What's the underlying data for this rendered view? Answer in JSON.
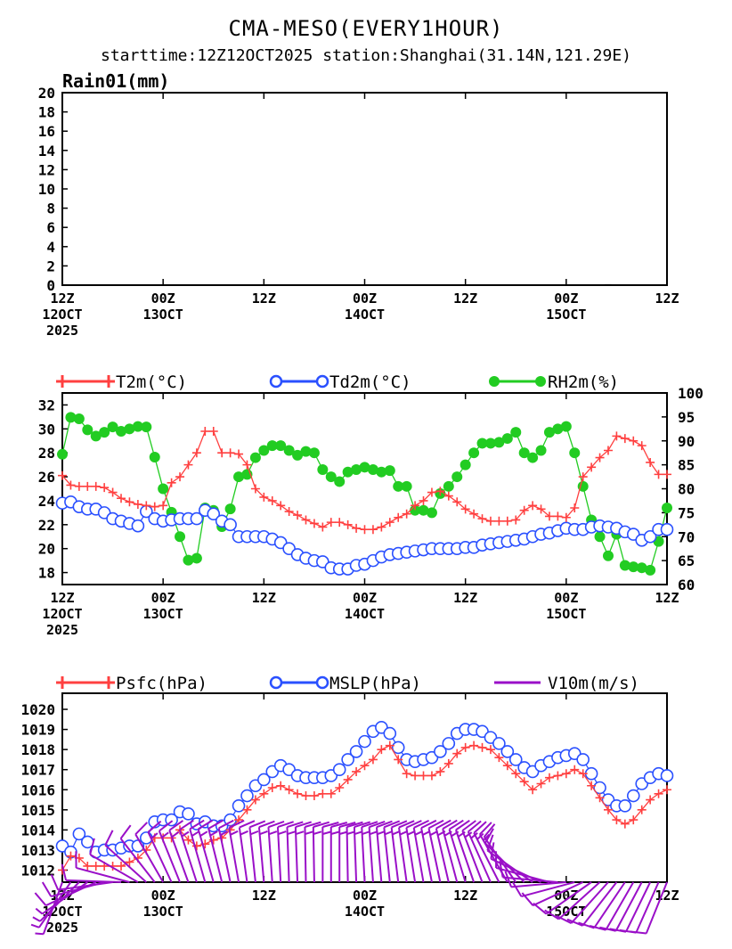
{
  "title": "CMA-MESO(EVERY1HOUR)",
  "subtitle": "starttime:12Z12OCT2025   station:Shanghai(31.14N,121.29E)",
  "time_axis": {
    "ticks": [
      {
        "hour": 0,
        "line1": "12Z",
        "line2": "12OCT",
        "line3": "2025"
      },
      {
        "hour": 12,
        "line1": "00Z",
        "line2": "13OCT",
        "line3": ""
      },
      {
        "hour": 24,
        "line1": "12Z",
        "line2": "",
        "line3": ""
      },
      {
        "hour": 36,
        "line1": "00Z",
        "line2": "14OCT",
        "line3": ""
      },
      {
        "hour": 48,
        "line1": "12Z",
        "line2": "",
        "line3": ""
      },
      {
        "hour": 60,
        "line1": "00Z",
        "line2": "15OCT",
        "line3": ""
      },
      {
        "hour": 72,
        "line1": "12Z",
        "line2": "",
        "line3": ""
      }
    ]
  },
  "colors": {
    "temperature": "#ff4040",
    "dewpoint": "#2a50ff",
    "humidity": "#22cc22",
    "pressure_sfc": "#ff4040",
    "mslp": "#2a50ff",
    "wind": "#9a10c8"
  },
  "chart_data": [
    {
      "type": "bar",
      "ylabel": "Rain01(mm)",
      "ylim": [
        0,
        20
      ],
      "yticks": [
        0,
        2,
        4,
        6,
        8,
        10,
        12,
        14,
        16,
        18,
        20
      ],
      "x": "hours from 12Z12OCT2025 (0-72)",
      "series": [
        {
          "name": "Rain01(mm)",
          "values": [
            0,
            0,
            0,
            0,
            0,
            0,
            0,
            0,
            0,
            0,
            0,
            0,
            0,
            0,
            0,
            0,
            0,
            0,
            0,
            0,
            0,
            0,
            0,
            0,
            0,
            0,
            0,
            0,
            0,
            0,
            0,
            0,
            0,
            0,
            0,
            0,
            0,
            0,
            0,
            0,
            0,
            0,
            0,
            0,
            0,
            0,
            0,
            0,
            0,
            0,
            0,
            0,
            0,
            0,
            0,
            0,
            0,
            0,
            0,
            0,
            0,
            0,
            0,
            0,
            0,
            0.1,
            0,
            0,
            0,
            0,
            0,
            0,
            0
          ]
        }
      ],
      "grid": false
    },
    {
      "type": "line",
      "x": "hours from 12Z12OCT2025 (0-72)",
      "ylim_left": [
        17,
        33
      ],
      "yticks_left": [
        18,
        20,
        22,
        24,
        26,
        28,
        30,
        32
      ],
      "ylim_right": [
        60,
        100
      ],
      "yticks_right": [
        60,
        65,
        70,
        75,
        80,
        85,
        90,
        95,
        100
      ],
      "series": [
        {
          "name": "T2m(°C)",
          "axis": "left",
          "marker": "plus",
          "values": [
            26.1,
            25.3,
            25.2,
            25.2,
            25.2,
            25.1,
            24.7,
            24.2,
            23.9,
            23.7,
            23.6,
            23.5,
            23.6,
            25.5,
            26.0,
            27.0,
            28.0,
            29.8,
            29.8,
            28.0,
            28.0,
            27.9,
            27.0,
            25.0,
            24.3,
            24.0,
            23.6,
            23.1,
            22.8,
            22.4,
            22.1,
            21.8,
            22.2,
            22.2,
            22.0,
            21.7,
            21.6,
            21.6,
            21.8,
            22.2,
            22.6,
            22.9,
            23.6,
            24.0,
            24.7,
            24.8,
            24.4,
            23.9,
            23.3,
            22.9,
            22.5,
            22.3,
            22.3,
            22.3,
            22.4,
            23.2,
            23.6,
            23.3,
            22.7,
            22.7,
            22.6,
            23.4,
            26.0,
            26.8,
            27.6,
            28.2,
            29.4,
            29.2,
            29.0,
            28.6,
            27.2,
            26.2,
            26.2
          ]
        },
        {
          "name": "Td2m(°C)",
          "axis": "left",
          "marker": "circle",
          "values": [
            23.8,
            23.9,
            23.5,
            23.3,
            23.3,
            23.0,
            22.5,
            22.3,
            22.1,
            21.9,
            23.1,
            22.5,
            22.3,
            22.4,
            22.5,
            22.5,
            22.5,
            23.2,
            22.9,
            22.3,
            22.0,
            21.0,
            21.0,
            21.0,
            21.0,
            20.8,
            20.5,
            20.0,
            19.5,
            19.2,
            19.0,
            18.9,
            18.4,
            18.3,
            18.3,
            18.6,
            18.7,
            19.0,
            19.3,
            19.5,
            19.6,
            19.7,
            19.8,
            19.9,
            20.0,
            20.0,
            20.0,
            20.0,
            20.1,
            20.1,
            20.3,
            20.4,
            20.5,
            20.6,
            20.7,
            20.8,
            21.0,
            21.2,
            21.3,
            21.5,
            21.7,
            21.6,
            21.6,
            21.8,
            21.9,
            21.8,
            21.7,
            21.4,
            21.2,
            20.7,
            21.0,
            21.6,
            21.6
          ]
        },
        {
          "name": "RH2m(%)",
          "axis": "right",
          "marker": "dot",
          "values": [
            87.2,
            94.9,
            94.6,
            92.3,
            91.0,
            91.8,
            92.9,
            92.0,
            92.5,
            93.0,
            92.9,
            86.6,
            80.0,
            75.1,
            70.0,
            65.1,
            65.5,
            76.0,
            75.5,
            72.1,
            75.8,
            82.5,
            83.0,
            86.5,
            88.0,
            89.0,
            89.0,
            88.0,
            87.0,
            87.8,
            87.5,
            84.0,
            82.5,
            81.5,
            83.5,
            84.0,
            84.5,
            84.0,
            83.5,
            83.8,
            80.5,
            80.5,
            75.5,
            75.5,
            75.0,
            79.0,
            80.5,
            82.5,
            85.0,
            87.5,
            89.5,
            89.5,
            89.7,
            90.5,
            91.8,
            87.5,
            86.5,
            88.0,
            91.8,
            92.5,
            93.0,
            87.5,
            80.5,
            73.5,
            70.0,
            66.0,
            70.5,
            64.0,
            63.7,
            63.5,
            63.0,
            69.0,
            76.0
          ]
        }
      ],
      "grid": false
    },
    {
      "type": "line",
      "x": "hours from 12Z12OCT2025 (0-72)",
      "ylim": [
        1011.4,
        1020.8
      ],
      "yticks": [
        1012,
        1013,
        1014,
        1015,
        1016,
        1017,
        1018,
        1019,
        1020
      ],
      "series": [
        {
          "name": "Psfc(hPa)",
          "marker": "plus",
          "values": [
            1012.0,
            1012.7,
            1012.6,
            1012.2,
            1012.2,
            1012.2,
            1012.2,
            1012.2,
            1012.4,
            1012.6,
            1013.0,
            1013.6,
            1013.6,
            1013.6,
            1014.0,
            1013.5,
            1013.2,
            1013.3,
            1013.5,
            1013.6,
            1014.0,
            1014.5,
            1015.0,
            1015.5,
            1015.8,
            1016.1,
            1016.2,
            1016.0,
            1015.8,
            1015.7,
            1015.7,
            1015.8,
            1015.8,
            1016.1,
            1016.5,
            1016.9,
            1017.2,
            1017.5,
            1018.0,
            1018.2,
            1017.5,
            1016.8,
            1016.7,
            1016.7,
            1016.7,
            1016.9,
            1017.3,
            1017.8,
            1018.1,
            1018.2,
            1018.1,
            1018.0,
            1017.6,
            1017.2,
            1016.8,
            1016.4,
            1016.0,
            1016.3,
            1016.6,
            1016.7,
            1016.8,
            1017.0,
            1016.8,
            1016.2,
            1015.6,
            1015.0,
            1014.5,
            1014.3,
            1014.5,
            1015.0,
            1015.5,
            1015.8,
            1016.0
          ]
        },
        {
          "name": "MSLP(hPa)",
          "marker": "circle",
          "values": [
            1013.2,
            1012.9,
            1013.8,
            1013.4,
            1012.9,
            1013.0,
            1013.0,
            1013.1,
            1013.2,
            1013.2,
            1013.6,
            1014.4,
            1014.5,
            1014.5,
            1014.9,
            1014.8,
            1014.3,
            1014.4,
            1014.2,
            1014.2,
            1014.5,
            1015.2,
            1015.7,
            1016.2,
            1016.5,
            1016.9,
            1017.2,
            1017.0,
            1016.7,
            1016.6,
            1016.6,
            1016.6,
            1016.7,
            1017.0,
            1017.5,
            1017.9,
            1018.4,
            1018.9,
            1019.1,
            1018.8,
            1018.1,
            1017.5,
            1017.4,
            1017.5,
            1017.6,
            1017.9,
            1018.3,
            1018.8,
            1019.0,
            1019.0,
            1018.9,
            1018.6,
            1018.3,
            1017.9,
            1017.5,
            1017.1,
            1016.9,
            1017.2,
            1017.4,
            1017.6,
            1017.7,
            1017.8,
            1017.5,
            1016.8,
            1016.1,
            1015.5,
            1015.2,
            1015.2,
            1015.7,
            1016.3,
            1016.6,
            1016.8,
            1016.7
          ]
        },
        {
          "name": "V10m(m/s)",
          "marker": "barb",
          "direction_deg": [
            200,
            215,
            225,
            235,
            245,
            255,
            262,
            272,
            285,
            300,
            312,
            322,
            330,
            335,
            338,
            340,
            342,
            344,
            344,
            346,
            348,
            350,
            352,
            354,
            355,
            356,
            357,
            358,
            358,
            359,
            359,
            360,
            360,
            360,
            359,
            358,
            357,
            356,
            355,
            354,
            353,
            352,
            351,
            350,
            349,
            348,
            347,
            345,
            343,
            341,
            339,
            336,
            333,
            330,
            325,
            315,
            305,
            295,
            285,
            275,
            265,
            255,
            245,
            235,
            228,
            222,
            218,
            214,
            210,
            208,
            206,
            204,
            202
          ],
          "speed": [
            3,
            3,
            3,
            3,
            4,
            4,
            4,
            4,
            4,
            5,
            5,
            5,
            5,
            6,
            6,
            6,
            6,
            6,
            6,
            6,
            6,
            6,
            6,
            6,
            6,
            6,
            6,
            6,
            6,
            6,
            6,
            6,
            6,
            6,
            6,
            6,
            6,
            6,
            6,
            6,
            6,
            6,
            6,
            6,
            6,
            6,
            6,
            6,
            6,
            6,
            6,
            6,
            6,
            6,
            5,
            5,
            5,
            5,
            5,
            5,
            5,
            4,
            4,
            4,
            4,
            4,
            4,
            4,
            4,
            4,
            4,
            4,
            4
          ]
        }
      ],
      "grid": false
    }
  ]
}
